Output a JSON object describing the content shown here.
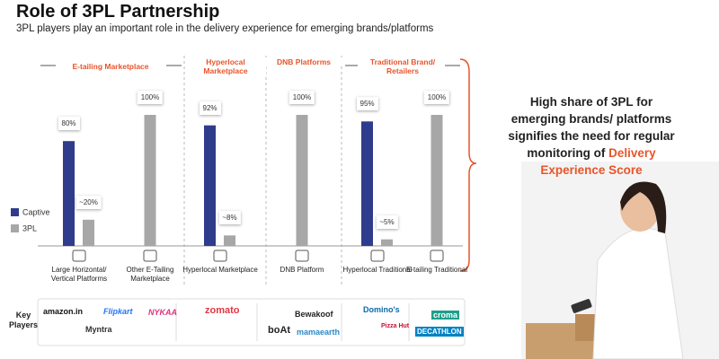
{
  "chart_data": {
    "type": "bar",
    "title": "Role of 3PL Partnership",
    "subtitle": "3PL players play an important role in the delivery experience for emerging brands/platforms",
    "groups": [
      "E-tailing Marketplace",
      "Hyperlocal Marketplace",
      "DNB Platforms",
      "Traditional Brand/ Retailers"
    ],
    "categories": [
      "Large Horizontal/ Vertical Platforms",
      "Other E-Tailing Marketplace",
      "Hyperlocal Marketplace",
      "DNB Platform",
      "Hyperlocal Traditional",
      "E-tailing Traditional"
    ],
    "series": [
      {
        "name": "Captive",
        "color": "#2f3c8c",
        "values": [
          80,
          null,
          92,
          null,
          95,
          null
        ],
        "value_labels": [
          "80%",
          null,
          "92%",
          null,
          "95%",
          null
        ]
      },
      {
        "name": "3PL",
        "color": "#a7a7a7",
        "values": [
          20,
          100,
          8,
          100,
          5,
          100
        ],
        "value_labels": [
          "~20%",
          "100%",
          "~8%",
          "100%",
          "~5%",
          "100%"
        ]
      }
    ],
    "callout": {
      "lines": [
        "High share of 3PL for",
        "emerging brands/ platforms",
        "signifies the need for regular",
        "monitoring of"
      ],
      "highlight": [
        "Delivery",
        "Experience Score"
      ]
    },
    "key_players": {
      "label": "Key Players",
      "brands": [
        "amazon.in",
        "Flipkart",
        "Myntra",
        "NYKAA",
        "zomato",
        "Bewakoof",
        "boAt",
        "mamaearth",
        "Domino's",
        "Pizza Hut",
        "croma",
        "DECATHLON"
      ]
    }
  }
}
